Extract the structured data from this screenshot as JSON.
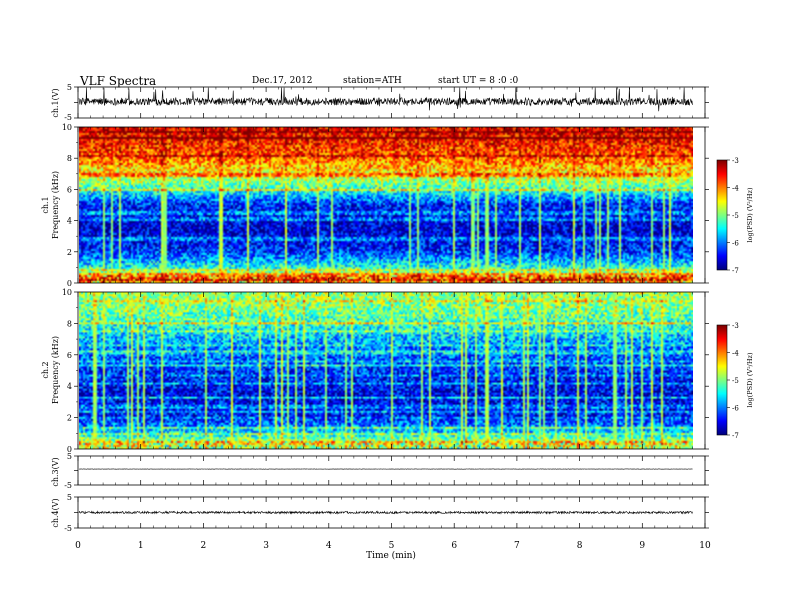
{
  "header": {
    "title": "VLF Spectra",
    "date": "Dec.17, 2012",
    "station": "station=ATH",
    "start_ut": "start UT = 8 :0 :0"
  },
  "chart_data": {
    "type": "heatmap",
    "x_axis": {
      "label": "Time (min)",
      "range": [
        0,
        10
      ],
      "ticks": [
        0,
        1,
        2,
        3,
        4,
        5,
        6,
        7,
        8,
        9,
        10
      ],
      "data_end": 9.8
    },
    "channels": [
      {
        "kind": "waveform",
        "ylabel": "ch.1(V)",
        "ylim": [
          -5,
          5
        ],
        "yticks": [
          "5",
          "-5"
        ],
        "baseline": 0.3,
        "noise_amplitude": 1.2,
        "color": "#000000"
      },
      {
        "kind": "spectrogram",
        "ylabel_channel": "ch.1",
        "ylabel": "Frequency (kHz)",
        "ylim": [
          0,
          10
        ],
        "yticks": [
          "0",
          "2",
          "4",
          "6",
          "8",
          "10"
        ],
        "approx_log_psd_profile": [
          {
            "f_khz": 0,
            "v": -4.8
          },
          {
            "f_khz": 0.3,
            "v": -4.2
          },
          {
            "f_khz": 1.0,
            "v": -5.4
          },
          {
            "f_khz": 2.0,
            "v": -6.3
          },
          {
            "f_khz": 3.5,
            "v": -6.7
          },
          {
            "f_khz": 5.0,
            "v": -6.4
          },
          {
            "f_khz": 6.0,
            "v": -5.3
          },
          {
            "f_khz": 7.0,
            "v": -4.5
          },
          {
            "f_khz": 8.0,
            "v": -3.9
          },
          {
            "f_khz": 9.0,
            "v": -3.6
          },
          {
            "f_khz": 10.0,
            "v": -3.4
          }
        ],
        "colorbar": {
          "range": [
            -7,
            -3
          ],
          "ticks": [
            "-3",
            "-4",
            "-5",
            "-6",
            "-7"
          ],
          "label": "log(PSD) (V²/Hz)"
        }
      },
      {
        "kind": "spectrogram",
        "ylabel_channel": "ch.2",
        "ylabel": "Frequency (kHz)",
        "ylim": [
          0,
          10
        ],
        "yticks": [
          "0",
          "2",
          "4",
          "6",
          "8",
          "10"
        ],
        "approx_log_psd_profile": [
          {
            "f_khz": 0,
            "v": -5.5
          },
          {
            "f_khz": 0.5,
            "v": -4.8
          },
          {
            "f_khz": 1.0,
            "v": -5.6
          },
          {
            "f_khz": 2.0,
            "v": -6.4
          },
          {
            "f_khz": 3.5,
            "v": -6.6
          },
          {
            "f_khz": 5.0,
            "v": -6.3
          },
          {
            "f_khz": 6.5,
            "v": -6.0
          },
          {
            "f_khz": 8.0,
            "v": -5.3
          },
          {
            "f_khz": 9.0,
            "v": -5.0
          },
          {
            "f_khz": 10.0,
            "v": -4.9
          }
        ],
        "colorbar": {
          "range": [
            -7,
            -3
          ],
          "ticks": [
            "-3",
            "-4",
            "-5",
            "-6",
            "-7"
          ],
          "label": "log(PSD) (V²/Hz)"
        }
      },
      {
        "kind": "waveform",
        "ylabel": "ch.3(V)",
        "ylim": [
          -5,
          5
        ],
        "yticks": [
          "5",
          "-5"
        ],
        "baseline": 0.5,
        "noise_amplitude": 0.05,
        "color": "#000000"
      },
      {
        "kind": "waveform",
        "ylabel": "ch.4(V)",
        "ylim": [
          -5,
          5
        ],
        "yticks": [
          "5",
          "-5"
        ],
        "baseline": 0.0,
        "noise_amplitude": 0.35,
        "color": "#000000"
      }
    ]
  }
}
